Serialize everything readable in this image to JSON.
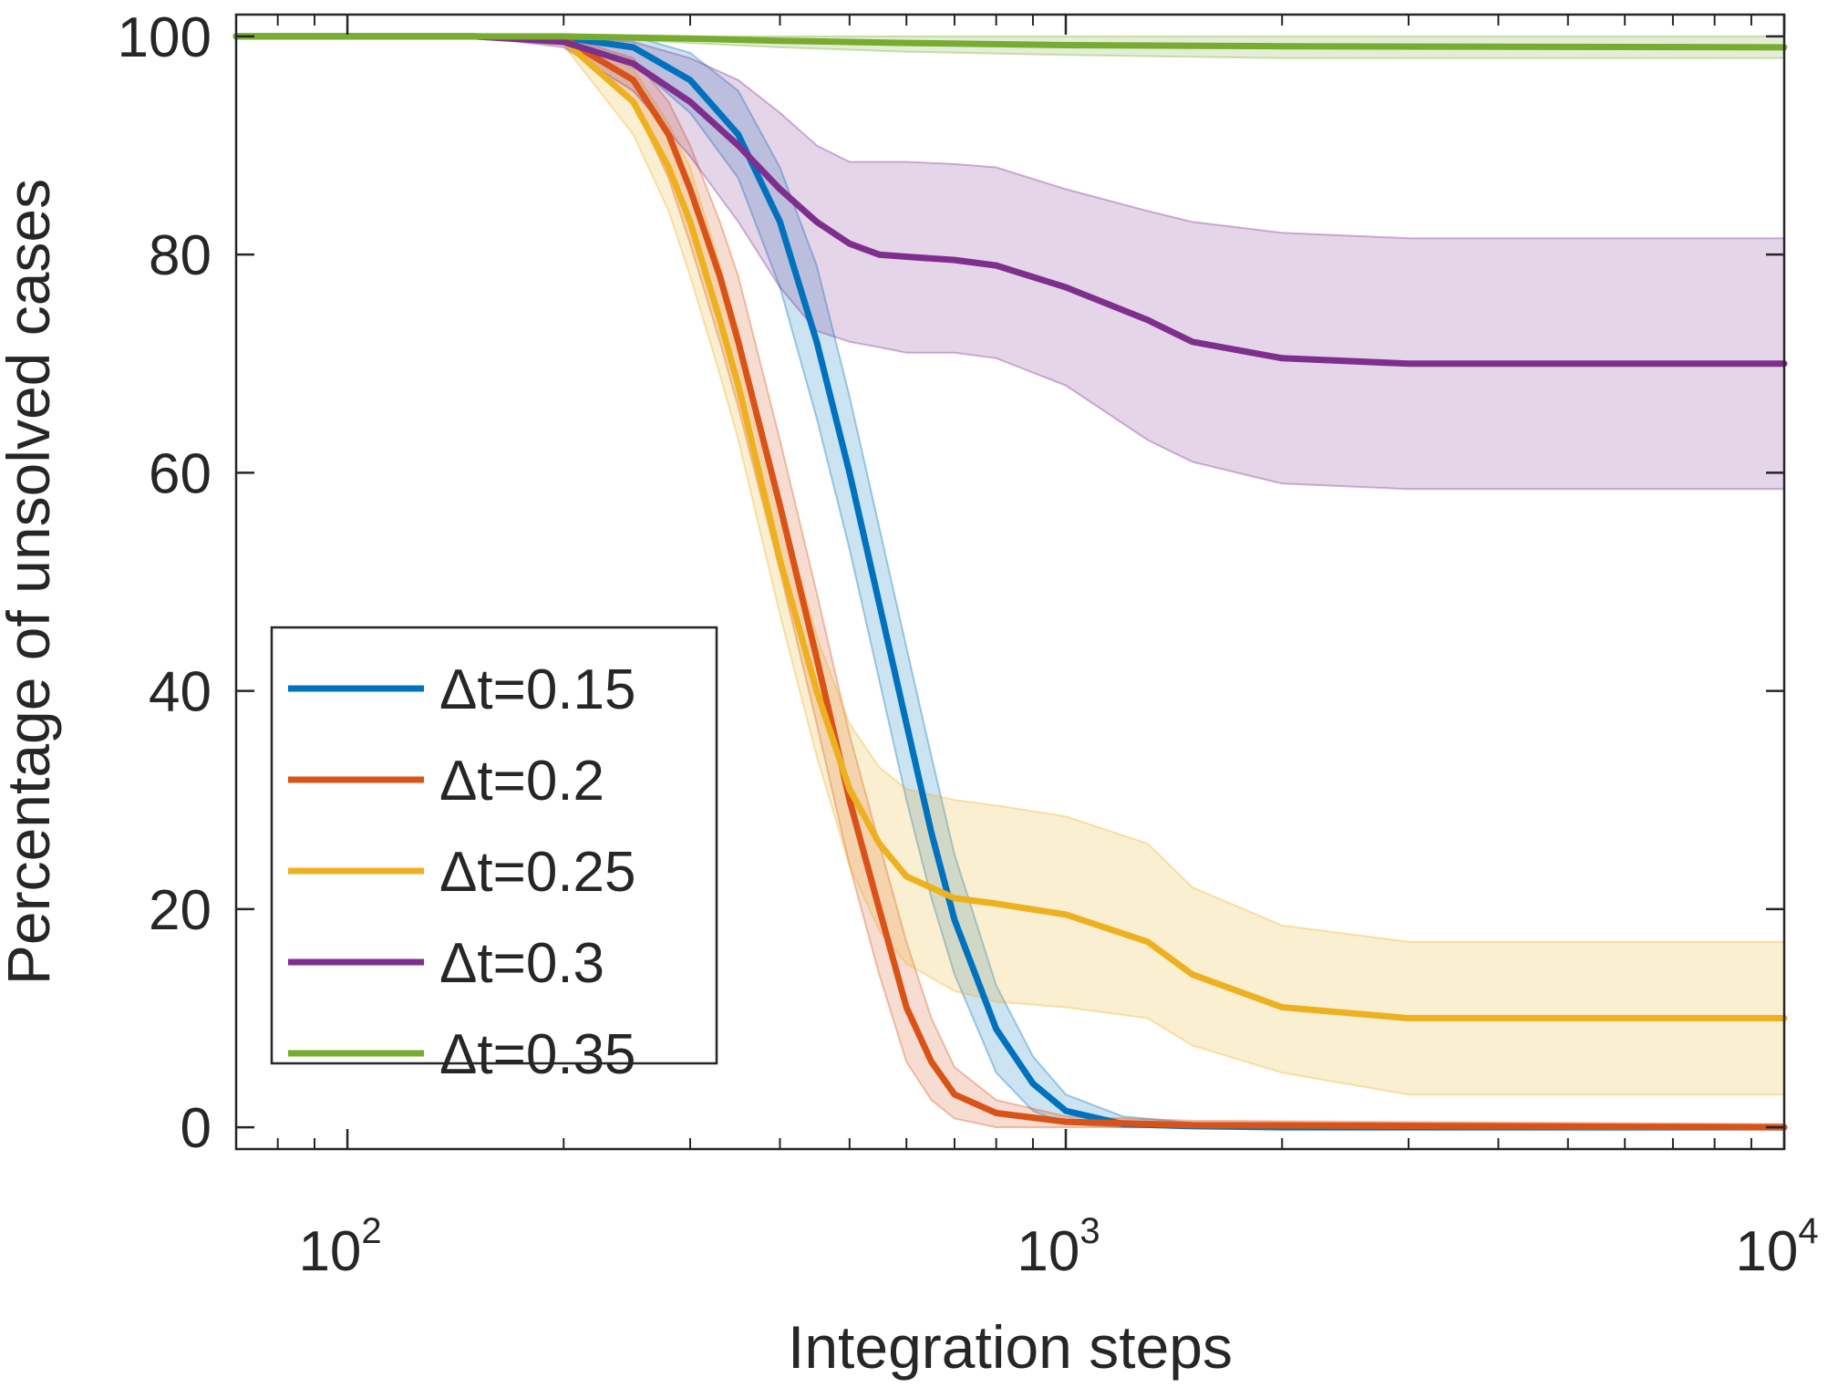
{
  "chart_data": {
    "type": "line",
    "xlabel": "Integration steps",
    "ylabel": "Percentage of unsolved cases",
    "xscale": "log",
    "xlim": [
      70,
      10000
    ],
    "ylim": [
      -2,
      102
    ],
    "x_ticks": [
      {
        "value": 100,
        "base": "10",
        "exp": "2"
      },
      {
        "value": 1000,
        "base": "10",
        "exp": "3"
      },
      {
        "value": 10000,
        "base": "10",
        "exp": "4"
      }
    ],
    "y_ticks": [
      {
        "value": 0,
        "label": "0"
      },
      {
        "value": 20,
        "label": "20"
      },
      {
        "value": 40,
        "label": "40"
      },
      {
        "value": 60,
        "label": "60"
      },
      {
        "value": 80,
        "label": "80"
      },
      {
        "value": 100,
        "label": "100"
      }
    ],
    "grid": false,
    "legend_position": "bottom-left",
    "series": [
      {
        "name": "Δt=0.15",
        "color": "#0072BD",
        "x": [
          70,
          150,
          200,
          250,
          300,
          350,
          400,
          450,
          500,
          550,
          600,
          650,
          700,
          800,
          900,
          1000,
          1200,
          1500,
          2000,
          10000
        ],
        "y": [
          100,
          100,
          99.9,
          99,
          96,
          91,
          83,
          72,
          60,
          48,
          37,
          27,
          19,
          9,
          4,
          1.5,
          0.3,
          0.1,
          0,
          0
        ],
        "lower": [
          100,
          100,
          99.8,
          97.5,
          93,
          87,
          77,
          65,
          53,
          41,
          30,
          21,
          14,
          5,
          1.5,
          0.3,
          0,
          0,
          0,
          0
        ],
        "upper": [
          100,
          100,
          100,
          100,
          98.5,
          95,
          88,
          79,
          67,
          55,
          44,
          34,
          25,
          13,
          6.5,
          3,
          1,
          0.4,
          0.2,
          0
        ]
      },
      {
        "name": "Δt=0.2",
        "color": "#D95319",
        "x": [
          70,
          150,
          200,
          250,
          280,
          300,
          330,
          350,
          400,
          450,
          500,
          550,
          600,
          650,
          700,
          800,
          1000,
          1500,
          10000
        ],
        "y": [
          100,
          100,
          99.8,
          96,
          91,
          86,
          78,
          72,
          57,
          43,
          30,
          20,
          11,
          6,
          3,
          1.3,
          0.5,
          0.2,
          0
        ],
        "lower": [
          100,
          100,
          99.5,
          94,
          87,
          81,
          72,
          66,
          51,
          37,
          24,
          14,
          6,
          2.5,
          0.8,
          0,
          0,
          0,
          0
        ],
        "upper": [
          100,
          100,
          100,
          98,
          94,
          90,
          83,
          78,
          63,
          49,
          36,
          26,
          17,
          10,
          5.5,
          2.5,
          1,
          0.6,
          0.3
        ]
      },
      {
        "name": "Δt=0.25",
        "color": "#EDB120",
        "x": [
          70,
          150,
          200,
          250,
          280,
          300,
          330,
          350,
          400,
          450,
          500,
          550,
          600,
          700,
          800,
          1000,
          1300,
          1500,
          2000,
          3000,
          10000
        ],
        "y": [
          100,
          100,
          99.6,
          94,
          88,
          83,
          74,
          68,
          52,
          40,
          31,
          26,
          23,
          21,
          20.5,
          19.5,
          17,
          14,
          11,
          10,
          10
        ],
        "lower": [
          100,
          100,
          99.2,
          91,
          84,
          78,
          69,
          63,
          47,
          34,
          24,
          18,
          15,
          12.5,
          11.5,
          11,
          10,
          7.5,
          5,
          3,
          3
        ],
        "upper": [
          100,
          100,
          100,
          97,
          92,
          88,
          79,
          73,
          57,
          45,
          37,
          33,
          31,
          30,
          29.5,
          28.5,
          26,
          22,
          18.5,
          17,
          17
        ]
      },
      {
        "name": "Δt=0.3",
        "color": "#7E2F8E",
        "x": [
          70,
          150,
          200,
          250,
          300,
          350,
          400,
          450,
          500,
          550,
          600,
          700,
          800,
          1000,
          1300,
          1500,
          2000,
          3000,
          10000
        ],
        "y": [
          100,
          100,
          99.5,
          97.5,
          94,
          90,
          86,
          83,
          81,
          80,
          79.8,
          79.5,
          79,
          77,
          74,
          72,
          70.5,
          70,
          70
        ],
        "lower": [
          100,
          100,
          99,
          95,
          89,
          83,
          77,
          73,
          72,
          71.5,
          71,
          71,
          70.5,
          68,
          63,
          61,
          59,
          58.5,
          58.5
        ],
        "upper": [
          100,
          100,
          100,
          99.5,
          98,
          96,
          93,
          90,
          88.5,
          88.5,
          88.5,
          88.3,
          88,
          86,
          84,
          83,
          82,
          81.5,
          81.5
        ]
      },
      {
        "name": "Δt=0.35",
        "color": "#77AC30",
        "x": [
          70,
          200,
          300,
          400,
          600,
          1000,
          2000,
          10000
        ],
        "y": [
          100,
          100,
          99.8,
          99.6,
          99.4,
          99.2,
          99.1,
          99
        ],
        "lower": [
          100,
          100,
          99.4,
          99,
          98.6,
          98.3,
          98,
          98
        ],
        "upper": [
          100,
          100,
          100,
          100,
          100,
          100,
          100,
          100
        ]
      }
    ]
  }
}
